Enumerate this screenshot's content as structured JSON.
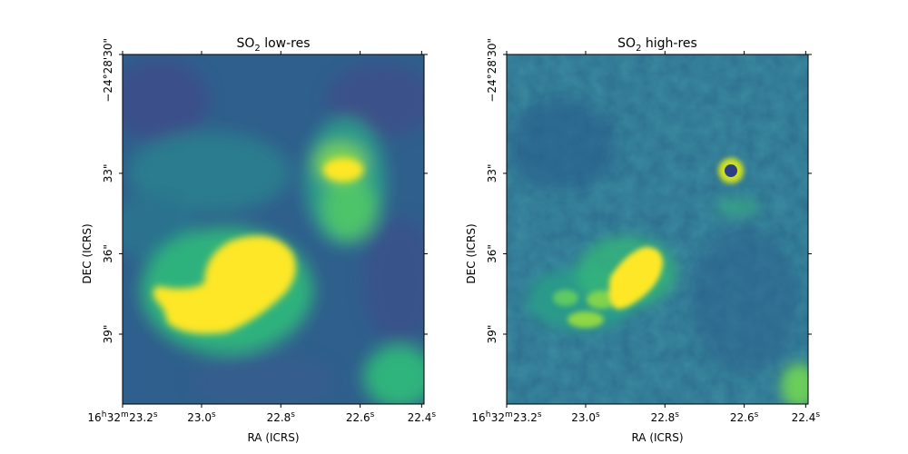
{
  "chart_data": [
    {
      "type": "heatmap",
      "title_main": "SO",
      "title_sub": "2",
      "title_rest": " low-res",
      "xlabel": "RA (ICRS)",
      "ylabel": "DEC (ICRS)",
      "x_ticks": [
        {
          "parts": [
            "16",
            "h",
            "32",
            "m",
            "23.2",
            "s"
          ]
        },
        {
          "parts": [
            "23.0",
            "s"
          ]
        },
        {
          "parts": [
            "22.8",
            "s"
          ]
        },
        {
          "parts": [
            "22.6",
            "s"
          ]
        },
        {
          "parts": [
            "22.4",
            "s"
          ]
        }
      ],
      "y_ticks": [
        "−24°28'30\"",
        "33\"",
        "36\"",
        "39\""
      ],
      "colormap": "viridis",
      "emission": [
        {
          "feature": "main-blob",
          "level": 1.0
        },
        {
          "feature": "blob-tail",
          "level": 0.75
        },
        {
          "feature": "compact-source",
          "level": 0.9
        },
        {
          "feature": "extended-halo",
          "level": 0.45
        }
      ]
    },
    {
      "type": "heatmap",
      "title_main": "SO",
      "title_sub": "2",
      "title_rest": " high-res",
      "xlabel": "RA (ICRS)",
      "ylabel": "DEC (ICRS)",
      "x_ticks": [
        {
          "parts": [
            "16",
            "h",
            "32",
            "m",
            "23.2",
            "s"
          ]
        },
        {
          "parts": [
            "23.0",
            "s"
          ]
        },
        {
          "parts": [
            "22.8",
            "s"
          ]
        },
        {
          "parts": [
            "22.6",
            "s"
          ]
        },
        {
          "parts": [
            "22.4",
            "s"
          ]
        }
      ],
      "y_ticks": [
        "−24°28'30\"",
        "33\"",
        "36\"",
        "39\""
      ],
      "colormap": "viridis",
      "emission": [
        {
          "feature": "main-blob",
          "level": 1.0
        },
        {
          "feature": "blob-tail",
          "level": 0.6
        },
        {
          "feature": "compact-ring",
          "level": 0.7
        },
        {
          "feature": "corner-patch",
          "level": 0.45
        }
      ]
    }
  ]
}
